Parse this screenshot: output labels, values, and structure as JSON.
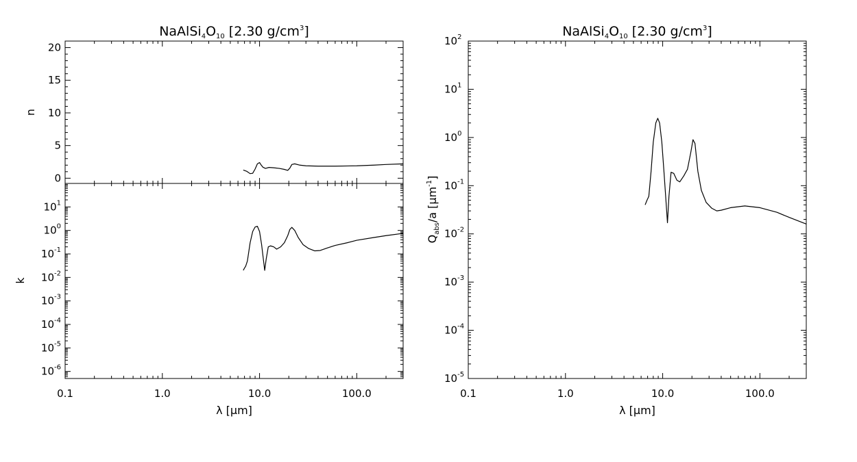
{
  "colors": {
    "line": "#000000",
    "background": "#ffffff"
  },
  "chart_data": [
    {
      "id": "n",
      "type": "line",
      "title": "NaAlSi4O10 [2.30 g/cm3]",
      "title_parts": {
        "pre": "NaAlSi",
        "sub1": "4",
        "mid": "O",
        "sub2": "10",
        "post": " [2.30 g/cm",
        "sup": "3",
        "end": "]"
      },
      "xscale": "log",
      "xlim": [
        0.1,
        300
      ],
      "yscale": "linear",
      "ylim": [
        -0.8,
        21
      ],
      "ylabel": "n",
      "yticks": [
        {
          "v": 0,
          "t": "0"
        },
        {
          "v": 5,
          "t": "5"
        },
        {
          "v": 10,
          "t": "10"
        },
        {
          "v": 15,
          "t": "15"
        },
        {
          "v": 20,
          "t": "20"
        }
      ],
      "x": [
        6.8,
        7.4,
        8.0,
        8.5,
        9.0,
        9.5,
        10.0,
        10.3,
        10.8,
        11.5,
        12.5,
        14.0,
        16.0,
        18.0,
        19.5,
        20.5,
        21.5,
        23.0,
        26.0,
        30.0,
        40.0,
        60.0,
        100.0,
        150.0,
        200.0,
        300.0
      ],
      "y": [
        1.25,
        1.05,
        0.7,
        0.75,
        1.4,
        2.2,
        2.4,
        2.1,
        1.7,
        1.5,
        1.65,
        1.6,
        1.5,
        1.35,
        1.2,
        1.55,
        2.1,
        2.2,
        2.0,
        1.9,
        1.85,
        1.85,
        1.9,
        2.0,
        2.1,
        2.2
      ]
    },
    {
      "id": "k",
      "type": "line",
      "xscale": "log",
      "xlim": [
        0.1,
        300
      ],
      "yscale": "log",
      "ylim": [
        5e-07,
        100
      ],
      "ylabel": "k",
      "xlabel": "λ [μm]",
      "yticks": [
        {
          "e": -6,
          "base": "10",
          "exp": "-6"
        },
        {
          "e": -5,
          "base": "10",
          "exp": "-5"
        },
        {
          "e": -4,
          "base": "10",
          "exp": "-4"
        },
        {
          "e": -3,
          "base": "10",
          "exp": "-3"
        },
        {
          "e": -2,
          "base": "10",
          "exp": "-2"
        },
        {
          "e": -1,
          "base": "10",
          "exp": "-1"
        },
        {
          "e": 0,
          "base": "10",
          "exp": "0"
        },
        {
          "e": 1,
          "base": "10",
          "exp": "1"
        }
      ],
      "xticks": [
        {
          "v": 0.1,
          "t": "0.1"
        },
        {
          "v": 1,
          "t": "1.0"
        },
        {
          "v": 10,
          "t": "10.0"
        },
        {
          "v": 100,
          "t": "100.0"
        }
      ],
      "x": [
        6.8,
        7.0,
        7.2,
        7.5,
        8.0,
        8.5,
        9.0,
        9.5,
        10.0,
        10.5,
        11.0,
        11.3,
        11.7,
        12.3,
        13.0,
        14.0,
        15.0,
        16.5,
        18.0,
        19.5,
        20.5,
        21.5,
        23.0,
        25.0,
        28.0,
        32.0,
        37.0,
        42.0,
        50.0,
        60.0,
        80.0,
        100.0,
        150.0,
        200.0,
        300.0
      ],
      "y": [
        0.02,
        0.025,
        0.03,
        0.05,
        0.3,
        0.9,
        1.4,
        1.5,
        0.9,
        0.25,
        0.05,
        0.02,
        0.06,
        0.2,
        0.22,
        0.2,
        0.16,
        0.2,
        0.3,
        0.6,
        1.1,
        1.35,
        1.0,
        0.5,
        0.25,
        0.17,
        0.135,
        0.14,
        0.18,
        0.23,
        0.3,
        0.38,
        0.5,
        0.6,
        0.75
      ]
    },
    {
      "id": "qabs",
      "type": "line",
      "title": "NaAlSi4O10 [2.30 g/cm3]",
      "title_parts": {
        "pre": "NaAlSi",
        "sub1": "4",
        "mid": "O",
        "sub2": "10",
        "post": " [2.30 g/cm",
        "sup": "3",
        "end": "]"
      },
      "xscale": "log",
      "xlim": [
        0.1,
        300
      ],
      "yscale": "log",
      "ylim": [
        1e-05,
        100
      ],
      "ylabel": "Qabs/a [μm-1]",
      "ylabel_parts": {
        "q": "Q",
        "sub": "abs",
        "mid": "/a [μm",
        "sup": "-1",
        "end": "]"
      },
      "xlabel": "λ [μm]",
      "yticks": [
        {
          "e": -5,
          "base": "10",
          "exp": "-5"
        },
        {
          "e": -4,
          "base": "10",
          "exp": "-4"
        },
        {
          "e": -3,
          "base": "10",
          "exp": "-3"
        },
        {
          "e": -2,
          "base": "10",
          "exp": "-2"
        },
        {
          "e": -1,
          "base": "10",
          "exp": "-1"
        },
        {
          "e": 0,
          "base": "10",
          "exp": "0"
        },
        {
          "e": 1,
          "base": "10",
          "exp": "1"
        },
        {
          "e": 2,
          "base": "10",
          "exp": "2"
        }
      ],
      "xticks": [
        {
          "v": 0.1,
          "t": "0.1"
        },
        {
          "v": 1,
          "t": "1.0"
        },
        {
          "v": 10,
          "t": "10.0"
        },
        {
          "v": 100,
          "t": "100.0"
        }
      ],
      "x": [
        6.6,
        6.9,
        7.2,
        7.6,
        8.0,
        8.5,
        8.9,
        9.3,
        9.8,
        10.3,
        10.8,
        11.2,
        11.6,
        12.2,
        13.0,
        14.0,
        15.0,
        16.5,
        18.0,
        19.5,
        20.5,
        21.5,
        23.0,
        25.0,
        28.0,
        32.0,
        36.0,
        40.0,
        50.0,
        70.0,
        100.0,
        150.0,
        200.0,
        300.0
      ],
      "y": [
        0.04,
        0.05,
        0.06,
        0.2,
        0.8,
        2.0,
        2.5,
        2.0,
        0.8,
        0.2,
        0.05,
        0.017,
        0.06,
        0.19,
        0.18,
        0.13,
        0.12,
        0.16,
        0.22,
        0.5,
        0.9,
        0.75,
        0.2,
        0.08,
        0.045,
        0.034,
        0.03,
        0.031,
        0.035,
        0.038,
        0.035,
        0.028,
        0.022,
        0.016
      ]
    }
  ]
}
